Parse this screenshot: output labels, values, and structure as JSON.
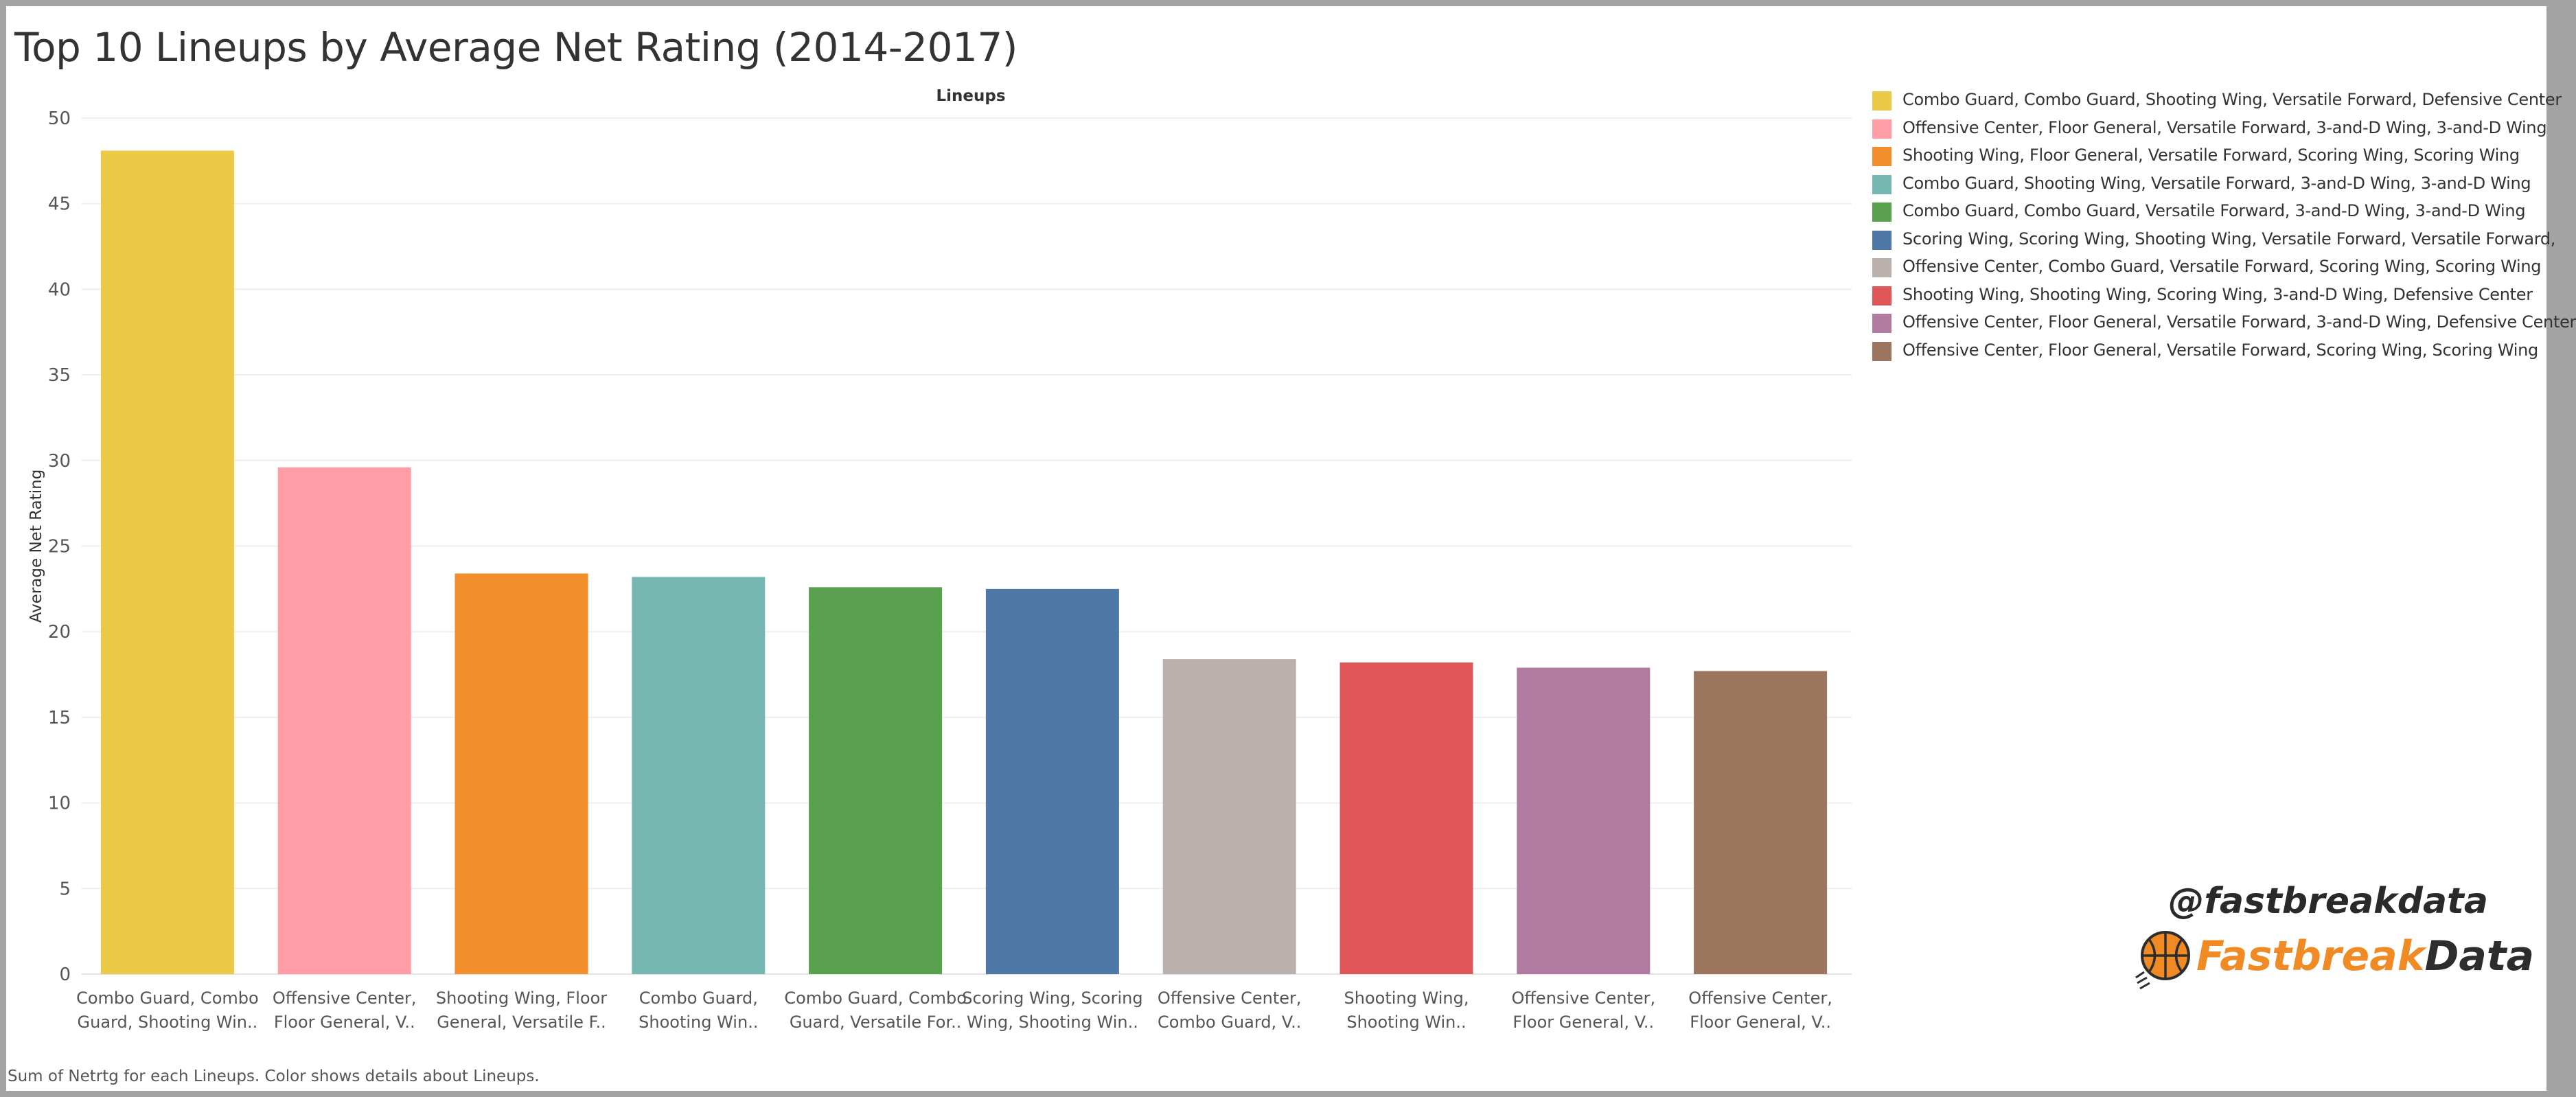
{
  "title": "Top 10 Lineups by Average Net Rating (2014-2017)",
  "footnote": "Sum of Netrtg for each Lineups.  Color shows details about Lineups.",
  "branding": {
    "handle": "@fastbreakdata",
    "logo_part_a": "Fastbreak",
    "logo_part_b": "Data",
    "logo_icon": "basketball-icon",
    "accent": "#f08a24"
  },
  "chart_data": {
    "type": "bar",
    "title": "Top 10 Lineups by Average Net Rating (2014-2017)",
    "column_header": "Lineups",
    "ylabel": "Average Net Rating",
    "xlabel": "",
    "ylim": [
      0,
      50
    ],
    "yticks": [
      0,
      5,
      10,
      15,
      20,
      25,
      30,
      35,
      40,
      45,
      50
    ],
    "grid": true,
    "legend_position": "right",
    "categories": [
      "Combo Guard, Combo Guard, Shooting Wing, Versatile Forward, Defensive Center",
      "Offensive Center, Floor General, Versatile Forward, 3-and-D Wing, 3-and-D Wing",
      "Shooting Wing, Floor General, Versatile Forward, Scoring Wing, Scoring Wing",
      "Combo Guard, Shooting Wing, Versatile Forward, 3-and-D Wing, 3-and-D Wing",
      "Combo Guard, Combo Guard, Versatile Forward, 3-and-D Wing, 3-and-D Wing",
      "Scoring Wing, Scoring Wing, Shooting Wing, Versatile Forward, Versatile Forward,",
      "Offensive Center, Combo Guard, Versatile Forward, Scoring Wing, Scoring Wing",
      "Shooting Wing, Shooting Wing, Scoring Wing, 3-and-D Wing, Defensive Center",
      "Offensive Center, Floor General, Versatile Forward, 3-and-D Wing, Defensive Center",
      "Offensive Center, Floor General, Versatile Forward, Scoring Wing, Scoring Wing"
    ],
    "tick_labels": [
      [
        "Combo Guard, Combo",
        "Guard, Shooting Win.."
      ],
      [
        "Offensive Center,",
        "Floor General, V.."
      ],
      [
        "Shooting Wing, Floor",
        "General, Versatile F.."
      ],
      [
        "Combo Guard,",
        "Shooting Win.."
      ],
      [
        "Combo Guard, Combo",
        "Guard, Versatile For.."
      ],
      [
        "Scoring Wing, Scoring",
        "Wing, Shooting Win.."
      ],
      [
        "Offensive Center,",
        "Combo Guard, V.."
      ],
      [
        "Shooting Wing,",
        "Shooting Win.."
      ],
      [
        "Offensive Center,",
        "Floor General, V.."
      ],
      [
        "Offensive Center,",
        "Floor General, V.."
      ]
    ],
    "values": [
      48.1,
      29.6,
      23.4,
      23.2,
      22.6,
      22.5,
      18.4,
      18.2,
      17.9,
      17.7
    ],
    "colors": [
      "#edc948",
      "#ff9da7",
      "#f28e2b",
      "#76b7b2",
      "#59a14f",
      "#4e79a7",
      "#bab0ac",
      "#e15759",
      "#b07aa1",
      "#9c755f"
    ]
  }
}
